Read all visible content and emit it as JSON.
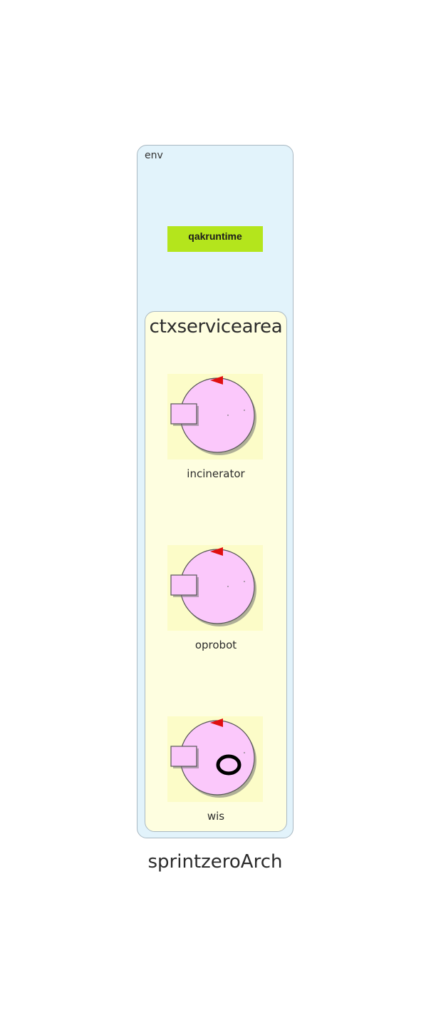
{
  "diagram": {
    "system_name": "sprintzeroArch",
    "env": {
      "label": "env"
    },
    "runtime": {
      "label": "qakruntime",
      "color": "#b4e51c"
    },
    "context": {
      "label": "ctxservicearea",
      "actors": [
        {
          "name": "incinerator",
          "icon": "actor-icon"
        },
        {
          "name": "oprobot",
          "icon": "actor-icon"
        },
        {
          "name": "wis",
          "icon": "actor-with-ring-icon"
        }
      ]
    }
  }
}
